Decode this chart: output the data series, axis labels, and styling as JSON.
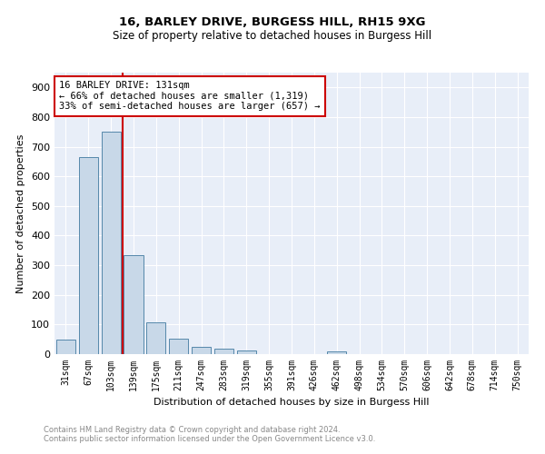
{
  "title1": "16, BARLEY DRIVE, BURGESS HILL, RH15 9XG",
  "title2": "Size of property relative to detached houses in Burgess Hill",
  "xlabel": "Distribution of detached houses by size in Burgess Hill",
  "ylabel": "Number of detached properties",
  "bar_labels": [
    "31sqm",
    "67sqm",
    "103sqm",
    "139sqm",
    "175sqm",
    "211sqm",
    "247sqm",
    "283sqm",
    "319sqm",
    "355sqm",
    "391sqm",
    "426sqm",
    "462sqm",
    "498sqm",
    "534sqm",
    "570sqm",
    "606sqm",
    "642sqm",
    "678sqm",
    "714sqm",
    "750sqm"
  ],
  "bar_values": [
    50,
    665,
    750,
    335,
    107,
    52,
    25,
    18,
    13,
    0,
    0,
    0,
    8,
    0,
    0,
    0,
    0,
    0,
    0,
    0,
    0
  ],
  "bar_color": "#c8d8e8",
  "bar_edge_color": "#5588aa",
  "vline_color": "#cc0000",
  "annotation_text": "16 BARLEY DRIVE: 131sqm\n← 66% of detached houses are smaller (1,319)\n33% of semi-detached houses are larger (657) →",
  "annotation_box_color": "#ffffff",
  "annotation_box_edge": "#cc0000",
  "ylim": [
    0,
    950
  ],
  "yticks": [
    0,
    100,
    200,
    300,
    400,
    500,
    600,
    700,
    800,
    900
  ],
  "background_color": "#e8eef8",
  "footer1": "Contains HM Land Registry data © Crown copyright and database right 2024.",
  "footer2": "Contains public sector information licensed under the Open Government Licence v3.0."
}
